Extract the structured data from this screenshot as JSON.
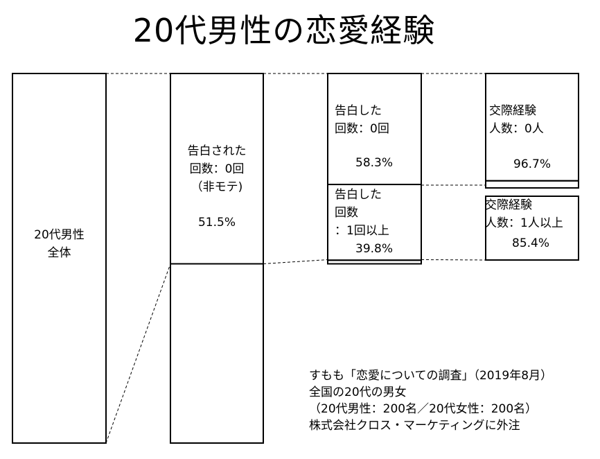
{
  "chart_data": {
    "type": "bar",
    "title": "20代男性の恋愛経験",
    "stacked": true,
    "categories": [
      "20代男性全体",
      "告白された回数",
      "告白した回数",
      "交際経験人数"
    ],
    "bars": [
      {
        "category": "20代男性全体",
        "segments": [
          {
            "label": "20代男性\n全体",
            "value": 100,
            "value_label": ""
          }
        ]
      },
      {
        "category": "告白された回数",
        "segments": [
          {
            "label": "告白された\n回数：0回\n（非モテ)",
            "value": 51.5,
            "value_label": "51.5%"
          },
          {
            "label": "",
            "value": 48.5,
            "value_label": ""
          }
        ]
      },
      {
        "category": "告白した回数",
        "segments": [
          {
            "label": "告白した\n回数：0回",
            "value": 58.3,
            "value_label": "58.3%"
          },
          {
            "label": "告白した\n回数\n：1回以上",
            "value": 39.8,
            "value_label": "39.8%"
          },
          {
            "label": "",
            "value": 1.9,
            "value_label": ""
          }
        ]
      },
      {
        "category": "交際経験人数",
        "segments": [
          {
            "label": "交際経験\n人数：0人",
            "value": 96.7,
            "value_label": "96.7%"
          },
          {
            "label": "交際経験\n人数：1人以上",
            "value": 85.4,
            "value_label": "85.4%"
          }
        ]
      }
    ]
  },
  "source": {
    "lines": [
      "すもも「恋愛についての調査」（2019年8月）",
      "全国の20代の男女",
      "（20代男性：200名／20代女性：200名）",
      "株式会社クロス・マーケティングに外注"
    ]
  },
  "colors": {
    "line": "#000000",
    "background": "#ffffff"
  }
}
